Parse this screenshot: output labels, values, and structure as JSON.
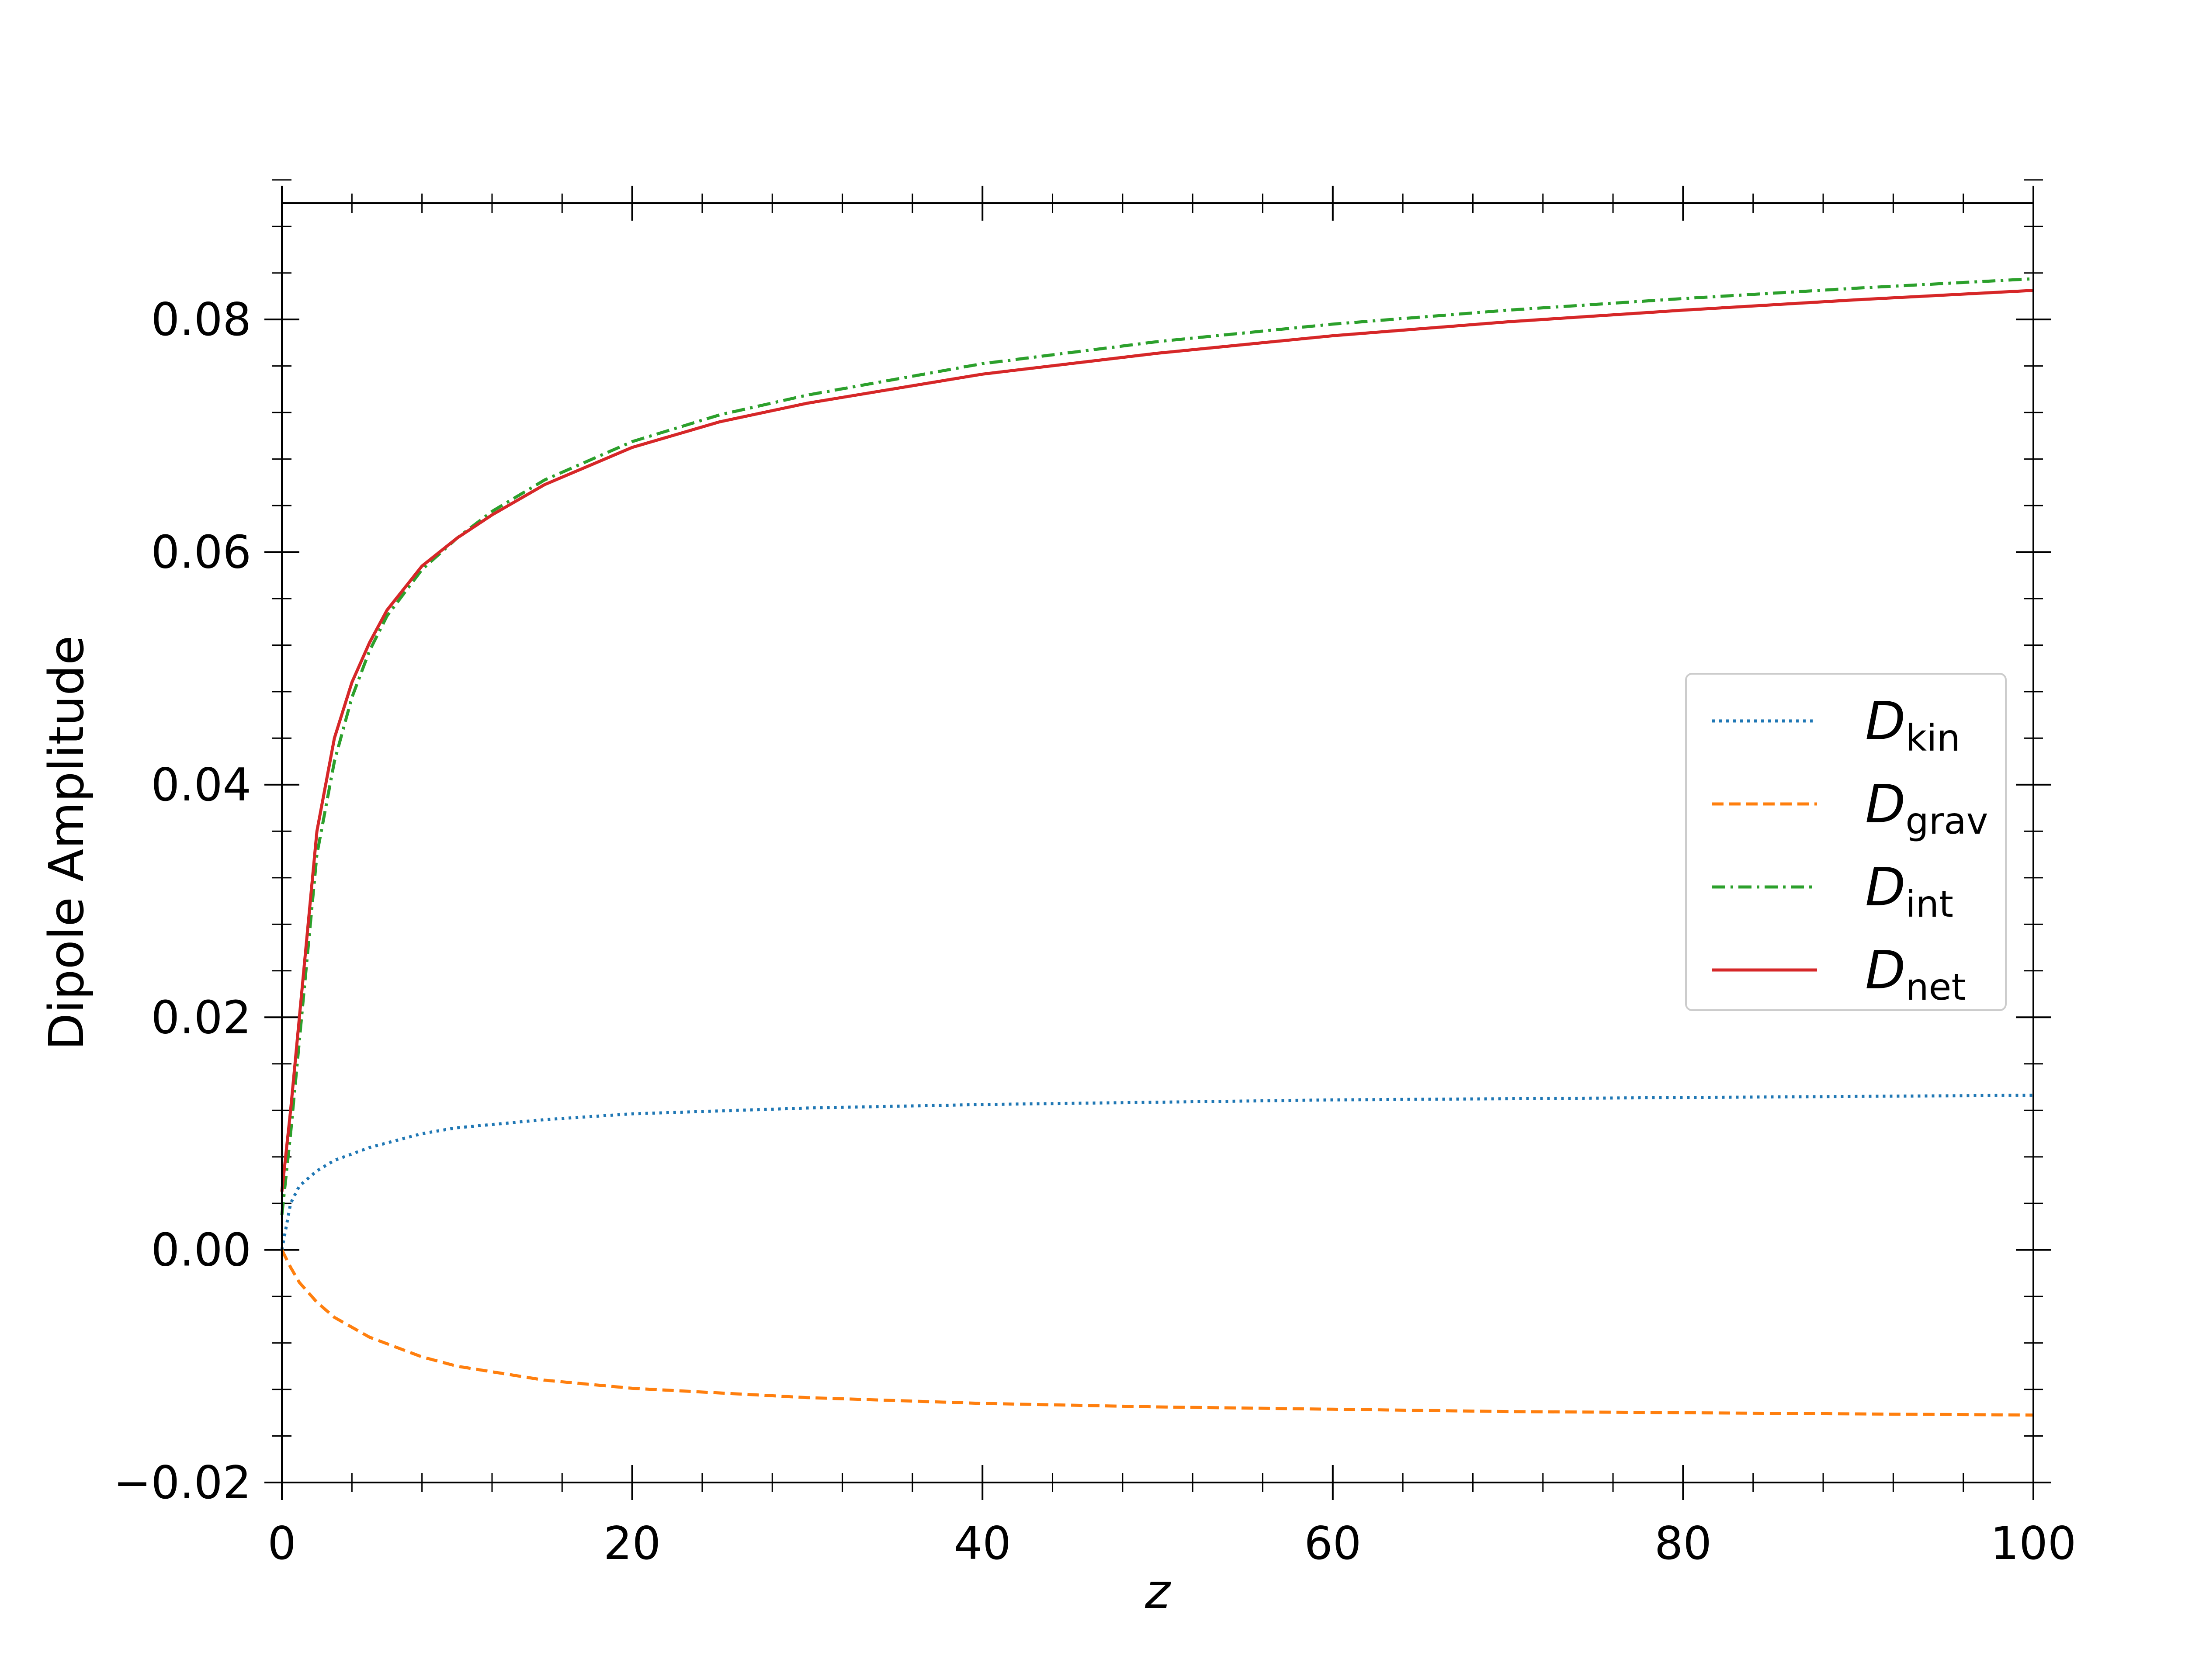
{
  "chart_data": {
    "type": "line",
    "title": "",
    "xlabel": "z",
    "ylabel": "Dipole Amplitude",
    "xlim": [
      0,
      100
    ],
    "ylim": [
      -0.02,
      0.09
    ],
    "x_ticks": [
      0,
      20,
      40,
      60,
      80,
      100
    ],
    "x_tick_labels": [
      "0",
      "20",
      "40",
      "60",
      "80",
      "100"
    ],
    "y_ticks": [
      -0.02,
      0.0,
      0.02,
      0.04,
      0.06,
      0.08
    ],
    "y_tick_labels": [
      "−0.02",
      "0.00",
      "0.02",
      "0.04",
      "0.06",
      "0.08"
    ],
    "x_minor_step": 4,
    "y_minor_step": 0.004,
    "grid": false,
    "legend_position": "center-right",
    "series": [
      {
        "name": "D_kin",
        "label_main": "D",
        "label_sub": "kin",
        "color": "#1f77b4",
        "style": "dotted",
        "x": [
          0,
          0.5,
          1,
          2,
          3,
          5,
          8,
          10,
          15,
          20,
          30,
          40,
          50,
          60,
          70,
          80,
          90,
          100
        ],
        "y": [
          0.0,
          0.004,
          0.0055,
          0.0068,
          0.0077,
          0.0088,
          0.01,
          0.0105,
          0.0112,
          0.0117,
          0.0122,
          0.0125,
          0.0127,
          0.0129,
          0.013,
          0.0131,
          0.0132,
          0.0133
        ]
      },
      {
        "name": "D_grav",
        "label_main": "D",
        "label_sub": "grav",
        "color": "#ff7f0e",
        "style": "dashed",
        "x": [
          0,
          0.5,
          1,
          2,
          3,
          5,
          8,
          10,
          15,
          20,
          30,
          40,
          50,
          60,
          70,
          80,
          90,
          100
        ],
        "y": [
          0.0,
          -0.0015,
          -0.0028,
          -0.0045,
          -0.0058,
          -0.0075,
          -0.0092,
          -0.01,
          -0.0112,
          -0.0119,
          -0.0127,
          -0.0132,
          -0.0135,
          -0.0137,
          -0.0139,
          -0.014,
          -0.0141,
          -0.0142
        ]
      },
      {
        "name": "D_int",
        "label_main": "D",
        "label_sub": "int",
        "color": "#2ca02c",
        "style": "dashdot",
        "x": [
          0,
          0.5,
          1,
          1.5,
          2,
          3,
          4,
          5,
          6,
          8,
          10,
          12,
          15,
          20,
          25,
          30,
          40,
          50,
          60,
          70,
          80,
          90,
          100
        ],
        "y": [
          0.003,
          0.01,
          0.018,
          0.026,
          0.034,
          0.042,
          0.0475,
          0.0515,
          0.0545,
          0.0585,
          0.0612,
          0.0635,
          0.0662,
          0.0695,
          0.0718,
          0.0735,
          0.0762,
          0.0781,
          0.0796,
          0.0808,
          0.0818,
          0.0827,
          0.0835
        ]
      },
      {
        "name": "D_net",
        "label_main": "D",
        "label_sub": "net",
        "color": "#d62728",
        "style": "solid",
        "x": [
          0,
          0.5,
          1,
          1.5,
          2,
          3,
          4,
          5,
          6,
          8,
          10,
          12,
          15,
          20,
          25,
          30,
          40,
          50,
          60,
          70,
          80,
          90,
          100
        ],
        "y": [
          0.005,
          0.012,
          0.02,
          0.028,
          0.036,
          0.044,
          0.0488,
          0.0522,
          0.055,
          0.0588,
          0.0612,
          0.0632,
          0.0658,
          0.069,
          0.0712,
          0.0728,
          0.0753,
          0.0771,
          0.0786,
          0.0798,
          0.0808,
          0.0817,
          0.0825
        ]
      }
    ]
  }
}
